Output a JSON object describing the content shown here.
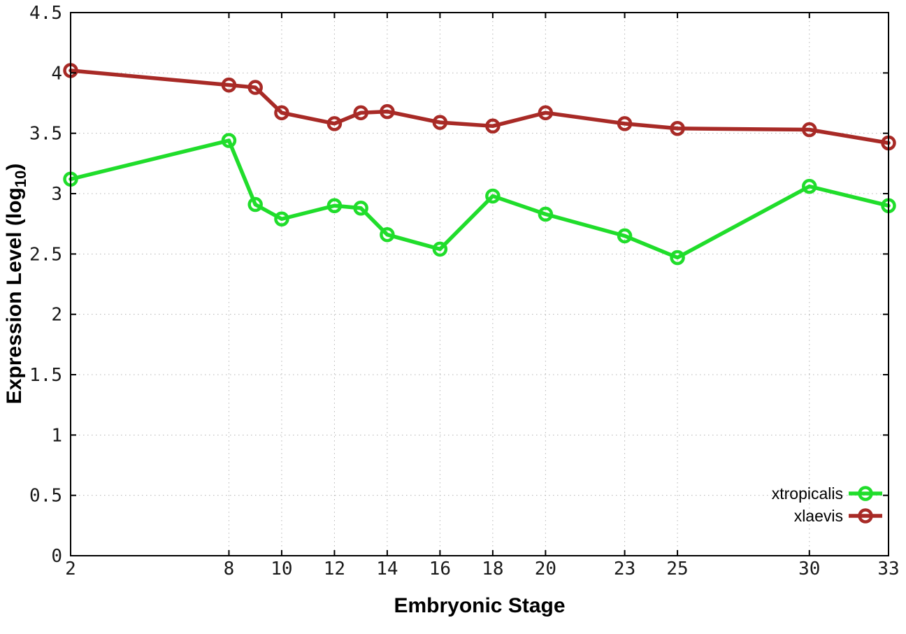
{
  "figure": {
    "background": "#ffffff"
  },
  "chart_data": {
    "type": "line",
    "title": "",
    "xlabel": "Embryonic Stage",
    "ylabel": {
      "pre": "Expression Level (log",
      "sub": "10",
      "post": ")"
    },
    "x": [
      2,
      8,
      9,
      10,
      12,
      13,
      14,
      16,
      18,
      20,
      23,
      25,
      30,
      33
    ],
    "series": [
      {
        "name": "xtropicalis",
        "color": "#20dd2b",
        "values": [
          3.12,
          3.44,
          2.91,
          2.79,
          2.9,
          2.88,
          2.66,
          2.54,
          2.98,
          2.83,
          2.65,
          2.47,
          3.06,
          2.9
        ]
      },
      {
        "name": "xlaevis",
        "color": "#a82a26",
        "values": [
          4.02,
          3.9,
          3.88,
          3.67,
          3.58,
          3.67,
          3.68,
          3.59,
          3.56,
          3.67,
          3.58,
          3.54,
          3.53,
          3.42
        ]
      }
    ],
    "xlim": [
      2,
      33
    ],
    "ylim": [
      0,
      4.5
    ],
    "xtick_values": [
      2,
      8,
      10,
      12,
      14,
      16,
      18,
      20,
      23,
      25,
      30,
      33
    ],
    "xtick_labels": [
      "2",
      "8",
      "10",
      "12",
      "14",
      "16",
      "18",
      "20",
      "23",
      "25",
      "30",
      "33"
    ],
    "ytick_values": [
      0,
      0.5,
      1,
      1.5,
      2,
      2.5,
      3,
      3.5,
      4,
      4.5
    ],
    "ytick_labels": [
      "0",
      "0.5",
      "1",
      "1.5",
      "2",
      "2.5",
      "3",
      "3.5",
      "4",
      "4.5"
    ],
    "grid": true,
    "legend": {
      "position": "bottom-right",
      "entries": [
        "xtropicalis",
        "xlaevis"
      ]
    },
    "colors": {
      "grid": "#b4b4b4",
      "axis": "#000000",
      "tick_label": "#1a1a1a"
    }
  }
}
